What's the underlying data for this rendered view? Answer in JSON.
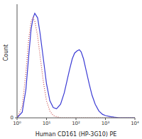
{
  "chart_data": {
    "type": "line",
    "x_label": "Human CD161 (HP-3G10) PE",
    "y_label": "Count",
    "log": "x",
    "grid": false,
    "x": [
      1,
      1.5,
      2,
      2.5,
      3,
      3.5,
      4,
      5,
      6,
      8,
      10,
      13,
      17,
      22,
      30,
      40,
      50,
      60,
      75,
      90,
      110,
      130,
      150,
      180,
      220,
      280,
      350,
      450,
      600,
      800,
      1000,
      1500,
      2000,
      3000,
      10000
    ],
    "xlim": [
      1,
      10000
    ],
    "xticks": [
      {
        "value": 1,
        "label": "10⁰"
      },
      {
        "value": 10,
        "label": "10¹"
      },
      {
        "value": 100,
        "label": "10²"
      },
      {
        "value": 1000,
        "label": "10³"
      },
      {
        "value": 10000,
        "label": "10⁴"
      }
    ],
    "ylim": [
      0,
      100
    ],
    "yticks": [
      0
    ],
    "series": [
      {
        "color": "#3b3bd4",
        "line_style": "solid",
        "values": [
          0,
          5,
          25,
          55,
          78,
          88,
          92,
          88,
          75,
          50,
          30,
          15,
          9,
          8,
          12,
          22,
          33,
          42,
          52,
          57,
          59,
          60,
          58,
          52,
          42,
          30,
          20,
          12,
          6,
          3,
          2,
          1,
          0.5,
          0,
          0
        ]
      },
      {
        "color": "#c84a4a",
        "line_style": "dotted",
        "values": [
          0,
          10,
          40,
          70,
          85,
          88,
          85,
          72,
          55,
          30,
          15,
          6,
          2,
          1,
          0,
          0,
          0,
          0,
          0,
          0,
          0,
          0,
          0,
          0,
          0,
          0,
          0,
          0,
          0,
          0,
          0,
          0,
          0,
          0,
          0
        ]
      }
    ]
  }
}
